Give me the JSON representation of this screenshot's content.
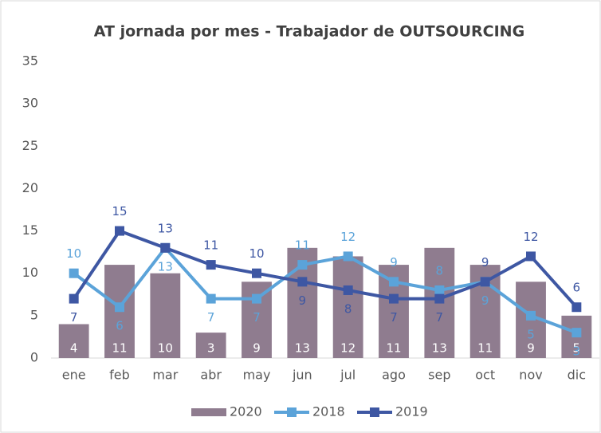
{
  "chart_data": {
    "type": "combo",
    "title": "AT jornada por mes - Trabajador de OUTSOURCING",
    "categories": [
      "ene",
      "feb",
      "mar",
      "abr",
      "may",
      "jun",
      "jul",
      "ago",
      "sep",
      "oct",
      "nov",
      "dic"
    ],
    "series": [
      {
        "name": "2020",
        "type": "bar",
        "color": "#8f7c8f",
        "values": [
          4,
          11,
          10,
          3,
          9,
          13,
          12,
          11,
          13,
          11,
          9,
          5
        ]
      },
      {
        "name": "2018",
        "type": "line",
        "color": "#5ba3d9",
        "values": [
          10,
          6,
          13,
          7,
          7,
          11,
          12,
          9,
          8,
          9,
          5,
          3
        ]
      },
      {
        "name": "2019",
        "type": "line",
        "color": "#3e57a3",
        "values": [
          7,
          15,
          13,
          11,
          10,
          9,
          8,
          7,
          7,
          9,
          12,
          6
        ]
      }
    ],
    "ylim": [
      0,
      35
    ],
    "yticks": [
      0,
      5,
      10,
      15,
      20,
      25,
      30,
      35
    ],
    "grid": false,
    "legend": "bottom"
  }
}
